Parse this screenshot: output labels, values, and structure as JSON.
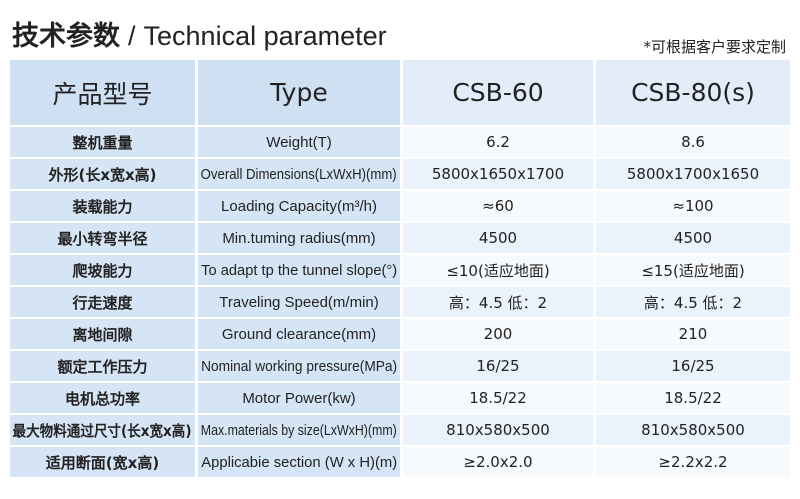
{
  "header": {
    "title": "技术参数",
    "separator": "/",
    "subtitle": "Technical parameter",
    "note": "*可根据客户要求定制"
  },
  "table": {
    "headers": [
      "产品型号",
      "Type",
      "CSB-60",
      "CSB-80(s)"
    ],
    "rows": [
      [
        "整机重量",
        "Weight(T)",
        "6.2",
        "8.6"
      ],
      [
        "外形(长x宽x高)",
        "Overall Dimensions(LxWxH)(mm)",
        "5800x1650x1700",
        "5800x1700x1650"
      ],
      [
        "装载能力",
        "Loading Capacity(m³/h)",
        "≈60",
        "≈100"
      ],
      [
        "最小转弯半径",
        "Min.tuming radius(mm)",
        "4500",
        "4500"
      ],
      [
        "爬坡能力",
        "To adapt tp the tunnel slope(°)",
        "≤10(适应地面)",
        "≤15(适应地面)"
      ],
      [
        "行走速度",
        "Traveling Speed(m/min)",
        "高：4.5 低：2",
        "高：4.5 低：2"
      ],
      [
        "离地间隙",
        "Ground clearance(mm)",
        "200",
        "210"
      ],
      [
        "额定工作压力",
        "Nominal working pressure(MPa)",
        "16/25",
        "16/25"
      ],
      [
        "电机总功率",
        "Motor Power(kw)",
        "18.5/22",
        "18.5/22"
      ],
      [
        "最大物料通过尺寸(长x宽x高)",
        "Max.materials by size(LxWxH)(mm)",
        "810x580x500",
        "810x580x500"
      ],
      [
        "适用断面(宽x高)",
        "Applicabie section (W x H)(m)",
        "≥2.0x2.0",
        "≥2.2x2.2"
      ]
    ]
  }
}
